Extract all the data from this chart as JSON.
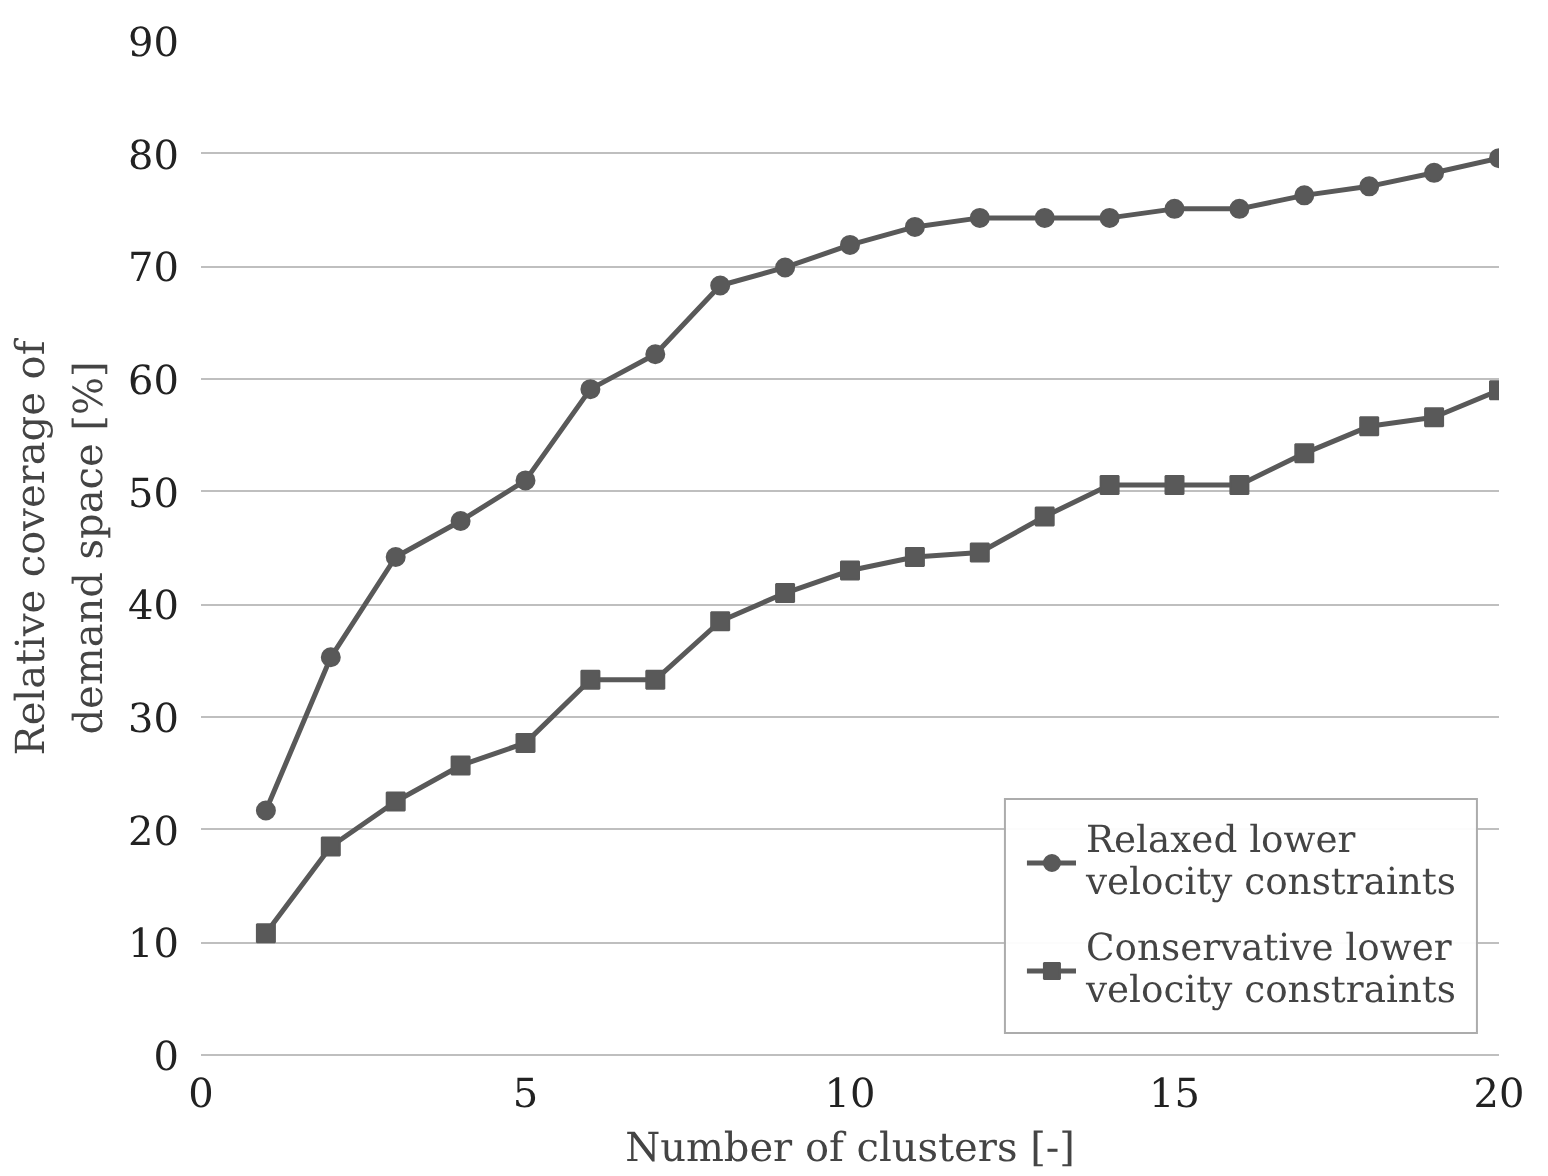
{
  "chart_data": {
    "type": "line",
    "xlabel": "Number of clusters [-]",
    "ylabel": "Relative coverage of\ndemand space [%]",
    "x": [
      1,
      2,
      3,
      4,
      5,
      6,
      7,
      8,
      9,
      10,
      11,
      12,
      13,
      14,
      15,
      16,
      17,
      18,
      19,
      20
    ],
    "series": [
      {
        "name": "Relaxed lower\nvelocity constraints",
        "color": "#595959",
        "marker": "circle",
        "values": [
          21.7,
          35.3,
          44.2,
          47.4,
          51.0,
          59.1,
          62.2,
          68.3,
          69.9,
          71.9,
          73.5,
          74.3,
          74.3,
          74.3,
          75.1,
          75.1,
          76.3,
          77.1,
          78.3,
          79.6
        ]
      },
      {
        "name": "Conservative lower\nvelocity constraints",
        "color": "#595959",
        "marker": "square",
        "values": [
          10.8,
          18.5,
          22.5,
          25.7,
          27.7,
          33.3,
          33.3,
          38.5,
          41.0,
          43.0,
          44.2,
          44.6,
          47.8,
          50.6,
          50.6,
          50.6,
          53.4,
          55.8,
          56.6,
          59.0
        ]
      }
    ],
    "xlim": [
      0,
      20
    ],
    "xticks": [
      0,
      5,
      10,
      15,
      20
    ],
    "ylim": [
      0,
      90
    ],
    "yticks": [
      0,
      10,
      20,
      30,
      40,
      50,
      60,
      70,
      80,
      90
    ],
    "grid": "y",
    "legend": "bottom right",
    "line_style": "solid"
  }
}
